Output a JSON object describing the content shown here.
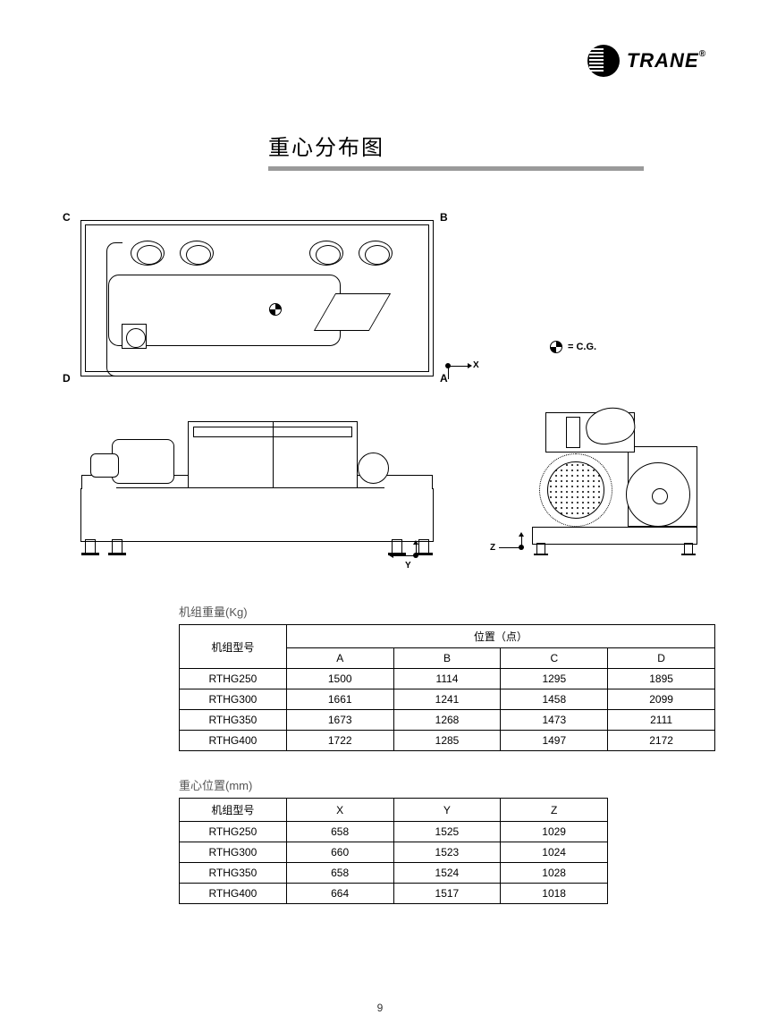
{
  "brand": {
    "name": "TRANE",
    "reg": "®"
  },
  "page_title": "重心分布图",
  "diagram": {
    "corners": {
      "A": "A",
      "B": "B",
      "C": "C",
      "D": "D"
    },
    "axes": {
      "x": "X",
      "y": "Y",
      "z": "Z"
    },
    "cg_legend": "= C.G."
  },
  "table1": {
    "caption": "机组重量(Kg)",
    "model_header": "机组型号",
    "position_header": "位置（点）",
    "columns": [
      "A",
      "B",
      "C",
      "D"
    ],
    "rows": [
      {
        "model": "RTHG250",
        "vals": [
          "1500",
          "1114",
          "1295",
          "1895"
        ]
      },
      {
        "model": "RTHG300",
        "vals": [
          "1661",
          "1241",
          "1458",
          "2099"
        ]
      },
      {
        "model": "RTHG350",
        "vals": [
          "1673",
          "1268",
          "1473",
          "2111"
        ]
      },
      {
        "model": "RTHG400",
        "vals": [
          "1722",
          "1285",
          "1497",
          "2172"
        ]
      }
    ]
  },
  "table2": {
    "caption": "重心位置(mm)",
    "model_header": "机组型号",
    "columns": [
      "X",
      "Y",
      "Z"
    ],
    "rows": [
      {
        "model": "RTHG250",
        "vals": [
          "658",
          "1525",
          "1029"
        ]
      },
      {
        "model": "RTHG300",
        "vals": [
          "660",
          "1523",
          "1024"
        ]
      },
      {
        "model": "RTHG350",
        "vals": [
          "658",
          "1524",
          "1028"
        ]
      },
      {
        "model": "RTHG400",
        "vals": [
          "664",
          "1517",
          "1018"
        ]
      }
    ]
  },
  "page_number": "9",
  "style": {
    "underline_color": "#9a9a9a",
    "text_color": "#000000",
    "caption_color": "#555555",
    "border_color": "#000000"
  }
}
